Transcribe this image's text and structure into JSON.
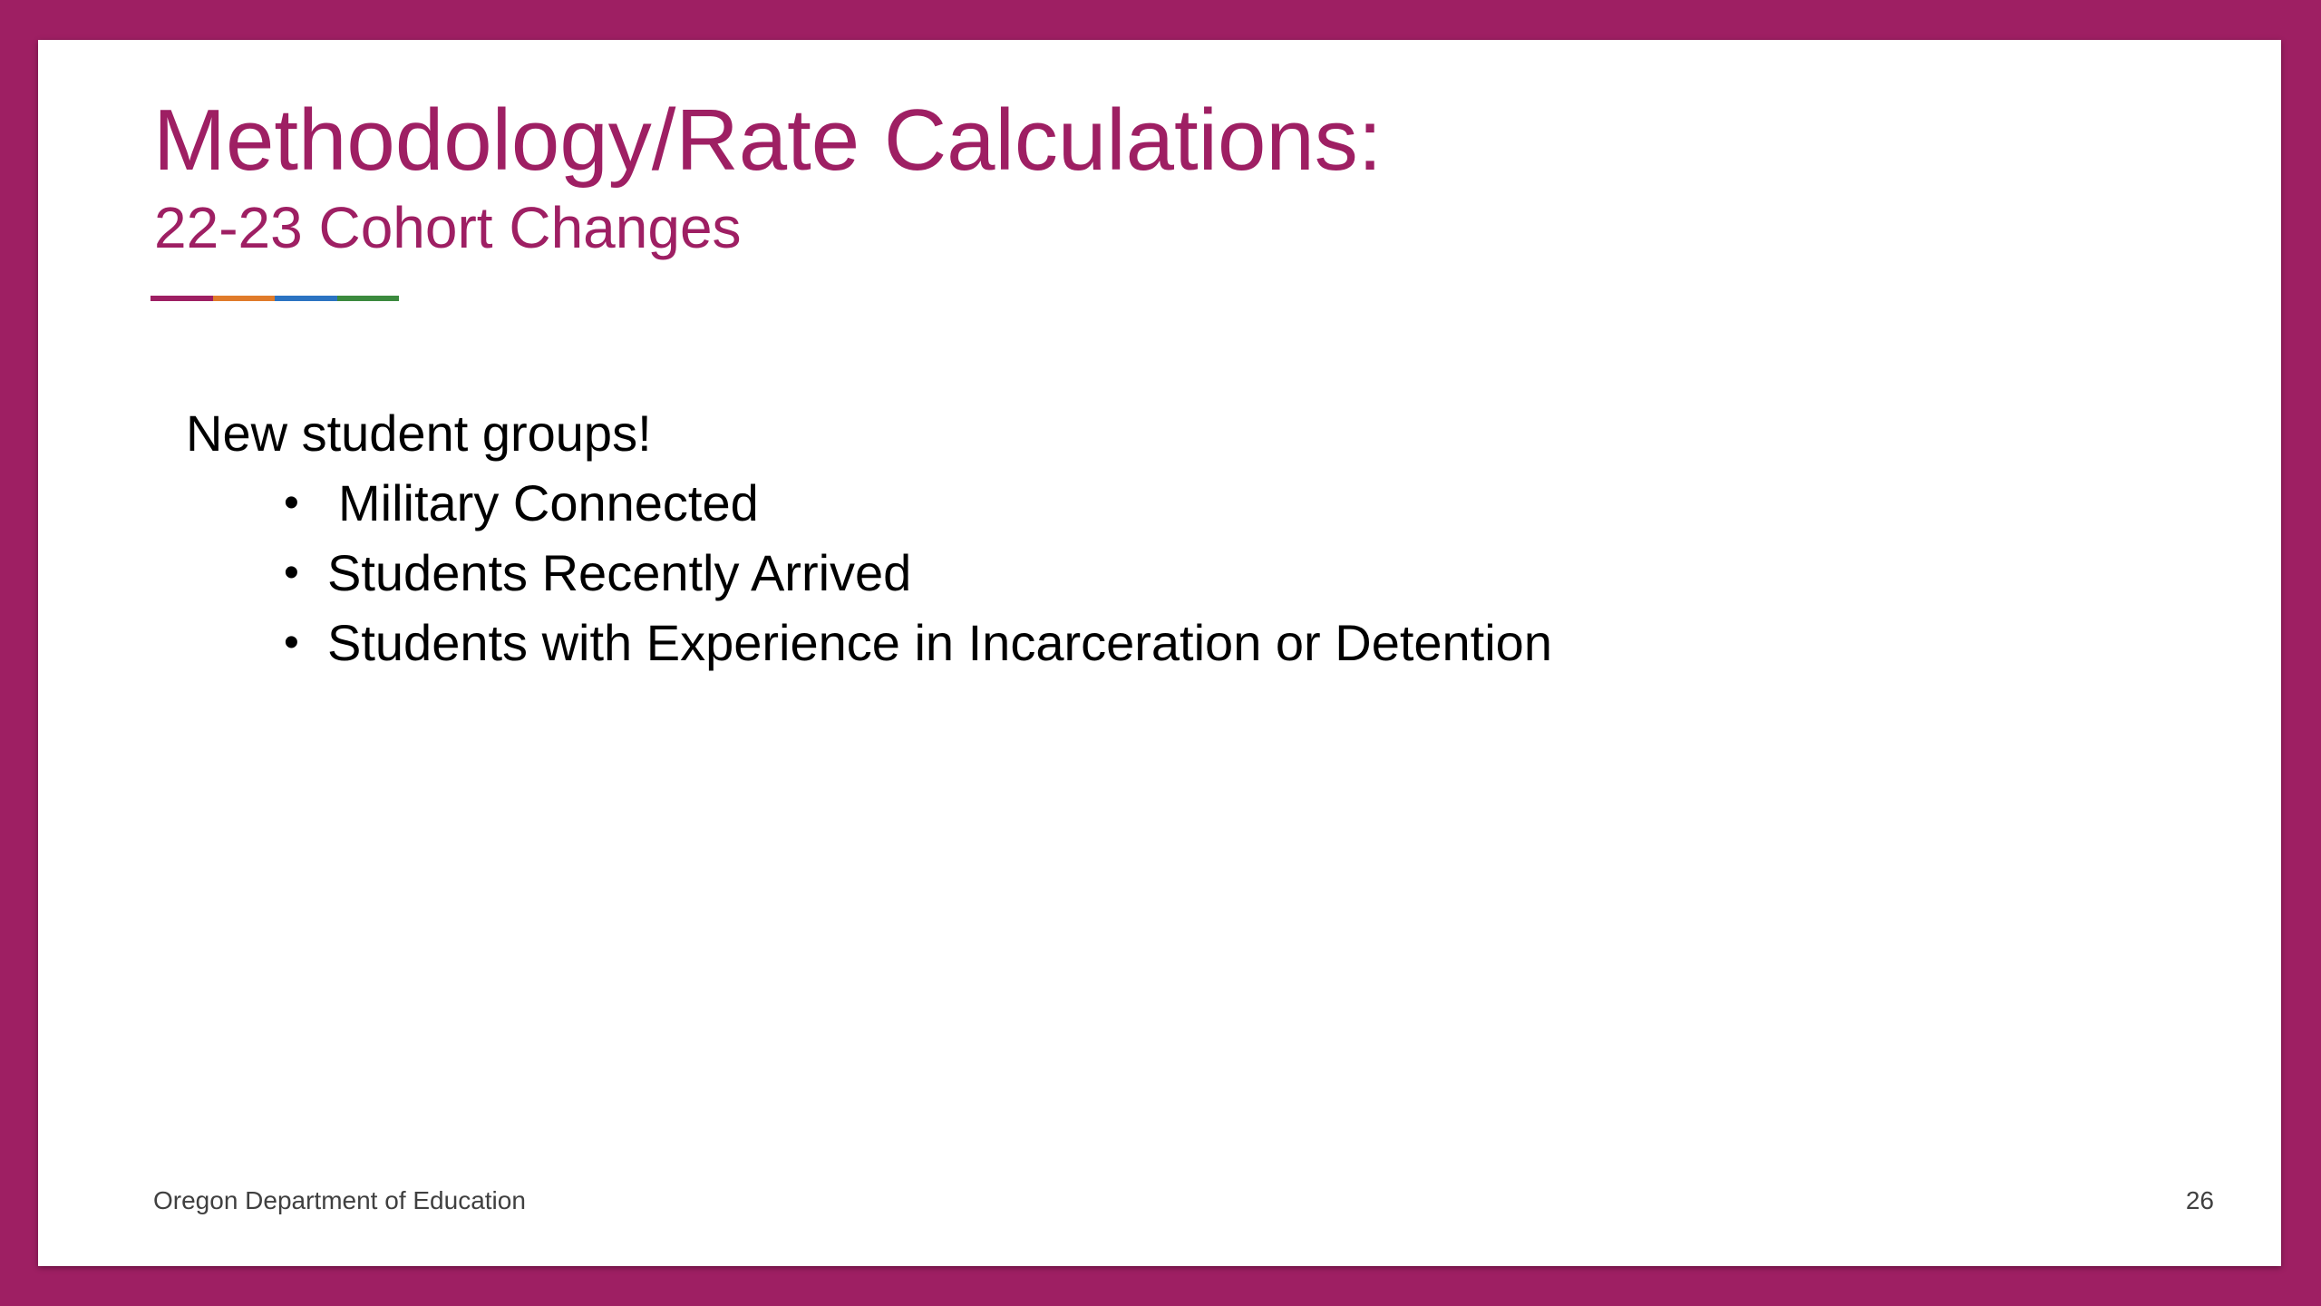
{
  "slide": {
    "title": "Methodology/Rate Calculations:",
    "subtitle": "22-23 Cohort Changes",
    "intro": "New student groups!",
    "bullets": [
      "Military Connected",
      "Students Recently Arrived",
      "Students with Experience in Incarceration or Detention"
    ],
    "footer_left": "Oregon Department of Education",
    "page_number": "26"
  },
  "colors": {
    "frame": "#9e1f63",
    "title": "#9e1f63",
    "accent_bar": [
      "#9e1f63",
      "#e07b2a",
      "#2b73c2",
      "#3b8a3e"
    ],
    "body_text": "#000000",
    "footer_text": "#404040"
  },
  "icons": {
    "bullet": "bullet-dot"
  }
}
